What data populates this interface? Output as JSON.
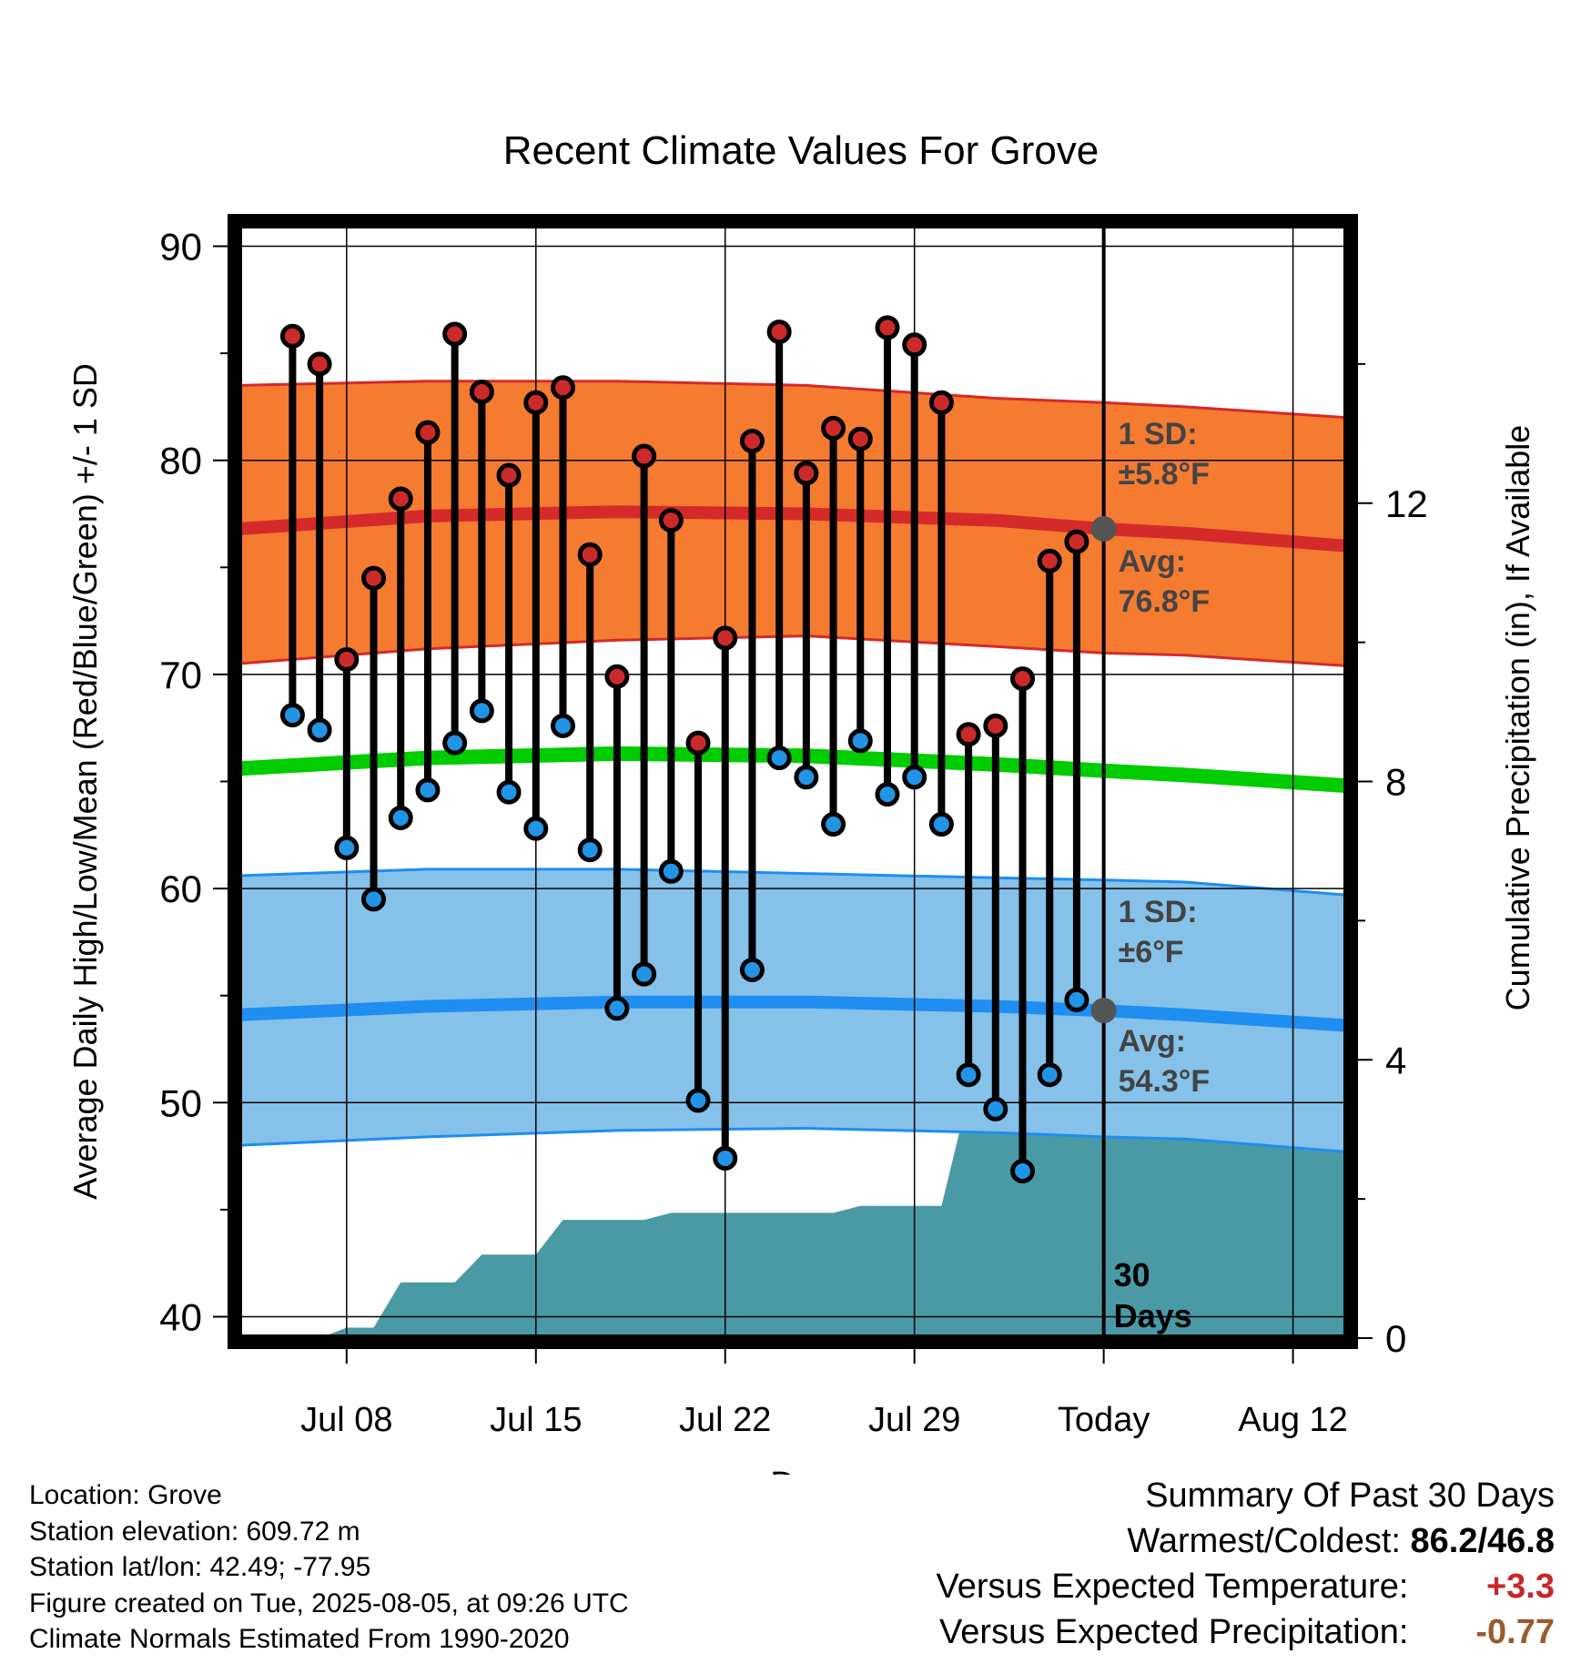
{
  "chart_data": {
    "type": "line",
    "title": "Recent Climate Values For Grove",
    "xlabel": "Day",
    "ylabel": "Average Daily High/Low/Mean (Red/Blue/Green) +/- 1 SD",
    "y2label": "Cumulative Precipitation (in), If Available",
    "ylim": [
      39,
      91
    ],
    "y2lim": [
      0,
      16
    ],
    "y_ticks": [
      40,
      50,
      60,
      70,
      80,
      90
    ],
    "y2_ticks": [
      0,
      4,
      8,
      12
    ],
    "x_ticks": [
      {
        "label": "Jul 08",
        "date": "2025-07-08"
      },
      {
        "label": "Jul 15",
        "date": "2025-07-15"
      },
      {
        "label": "Jul 22",
        "date": "2025-07-22"
      },
      {
        "label": "Jul 29",
        "date": "2025-07-29"
      },
      {
        "label": "Today",
        "date": "2025-08-05"
      },
      {
        "label": "Aug 12",
        "date": "2025-08-12"
      }
    ],
    "xlim": [
      "2025-07-04",
      "2025-08-14"
    ],
    "today": "2025-08-05",
    "grid": true,
    "dates": [
      "2025-07-06",
      "2025-07-07",
      "2025-07-08",
      "2025-07-09",
      "2025-07-10",
      "2025-07-11",
      "2025-07-12",
      "2025-07-13",
      "2025-07-14",
      "2025-07-15",
      "2025-07-16",
      "2025-07-17",
      "2025-07-18",
      "2025-07-19",
      "2025-07-20",
      "2025-07-21",
      "2025-07-22",
      "2025-07-23",
      "2025-07-24",
      "2025-07-25",
      "2025-07-26",
      "2025-07-27",
      "2025-07-28",
      "2025-07-29",
      "2025-07-30",
      "2025-07-31",
      "2025-08-01",
      "2025-08-02",
      "2025-08-03",
      "2025-08-04"
    ],
    "series": [
      {
        "name": "High",
        "color": "#cc2a2a",
        "values": [
          85.8,
          84.5,
          70.7,
          74.5,
          78.2,
          81.3,
          85.9,
          83.2,
          79.3,
          82.7,
          83.4,
          75.6,
          69.9,
          80.2,
          77.2,
          66.8,
          71.7,
          80.9,
          86.0,
          79.4,
          81.5,
          81.0,
          86.2,
          85.4,
          82.7,
          67.2,
          67.6,
          69.8,
          75.3,
          76.2
        ]
      },
      {
        "name": "Low",
        "color": "#2294e6",
        "values": [
          68.1,
          67.4,
          61.9,
          59.5,
          63.3,
          64.6,
          66.8,
          68.3,
          64.5,
          62.8,
          67.6,
          61.8,
          54.4,
          56.0,
          60.8,
          50.1,
          47.4,
          56.2,
          66.1,
          65.2,
          63.0,
          66.9,
          64.4,
          65.2,
          63.0,
          51.3,
          49.7,
          46.8,
          51.3,
          54.8
        ]
      }
    ],
    "normals": {
      "dates": [
        "2025-07-04",
        "2025-07-11",
        "2025-07-18",
        "2025-07-25",
        "2025-08-01",
        "2025-08-05",
        "2025-08-08",
        "2025-08-14"
      ],
      "high_mean": [
        76.8,
        77.4,
        77.6,
        77.5,
        77.2,
        76.8,
        76.6,
        76.0
      ],
      "high_sd_upper": [
        83.5,
        83.7,
        83.7,
        83.5,
        82.9,
        82.7,
        82.5,
        82.0
      ],
      "high_sd_lower": [
        70.5,
        71.2,
        71.6,
        71.8,
        71.3,
        71.0,
        70.9,
        70.4
      ],
      "mean": [
        65.6,
        66.1,
        66.3,
        66.2,
        65.8,
        65.5,
        65.3,
        64.8
      ],
      "low_mean": [
        54.1,
        54.5,
        54.7,
        54.7,
        54.5,
        54.3,
        54.1,
        53.6
      ],
      "low_sd_upper": [
        60.6,
        60.9,
        60.9,
        60.7,
        60.5,
        60.4,
        60.3,
        59.7
      ],
      "low_sd_lower": [
        48.0,
        48.4,
        48.7,
        48.8,
        48.6,
        48.4,
        48.3,
        47.7
      ]
    },
    "precip_cumulative": {
      "dates": [
        "2025-07-04",
        "2025-07-06",
        "2025-07-07",
        "2025-07-08",
        "2025-07-09",
        "2025-07-10",
        "2025-07-11",
        "2025-07-12",
        "2025-07-13",
        "2025-07-14",
        "2025-07-15",
        "2025-07-16",
        "2025-07-17",
        "2025-07-18",
        "2025-07-19",
        "2025-07-20",
        "2025-07-21",
        "2025-07-22",
        "2025-07-23",
        "2025-07-24",
        "2025-07-25",
        "2025-07-26",
        "2025-07-27",
        "2025-07-28",
        "2025-07-29",
        "2025-07-30",
        "2025-07-31",
        "2025-08-01",
        "2025-08-14"
      ],
      "values": [
        0,
        0,
        0,
        0.15,
        0.15,
        0.8,
        0.8,
        0.8,
        1.2,
        1.2,
        1.2,
        1.7,
        1.7,
        1.7,
        1.7,
        1.8,
        1.8,
        1.8,
        1.8,
        1.8,
        1.8,
        1.8,
        1.9,
        1.9,
        1.9,
        1.9,
        3.5,
        3.5,
        3.5
      ]
    },
    "annotations": {
      "high_sd": {
        "line1": "1 SD:",
        "line2": "±5.8°F"
      },
      "high_avg": {
        "line1": "Avg:",
        "line2": "76.8°F",
        "value": 76.8
      },
      "low_sd": {
        "line1": "1 SD:",
        "line2": "±6°F"
      },
      "low_avg": {
        "line1": "Avg:",
        "line2": "54.3°F",
        "value": 54.3
      },
      "days": {
        "line1": "30",
        "line2": "Days"
      }
    },
    "colors": {
      "high_band": "#f47b30",
      "high_line": "#d42a2a",
      "mean_line": "#00cc00",
      "low_band": "#85c1e8",
      "low_line": "#1e8ef0",
      "precip": "#4a9aa6",
      "marker_high": "#cc2a2a",
      "marker_low": "#2294e6",
      "today_dot": "#555555",
      "annotation": "#444444"
    }
  },
  "meta": {
    "location": "Location: Grove",
    "elevation": "Station elevation: 609.72 m",
    "latlon": "Station lat/lon: 42.49; -77.95",
    "created": "Figure created on Tue, 2025-08-05, at 09:26 UTC",
    "normals": "Climate Normals Estimated From 1990-2020"
  },
  "summary": {
    "heading": "Summary Of Past 30 Days",
    "warmest_coldest_label": "Warmest/Coldest:",
    "warmest_coldest_value": "86.2/46.8",
    "temp_label": "Versus Expected Temperature:",
    "temp_value": "+3.3",
    "prcp_label": "Versus Expected Precipitation:",
    "prcp_value": "-0.77"
  }
}
